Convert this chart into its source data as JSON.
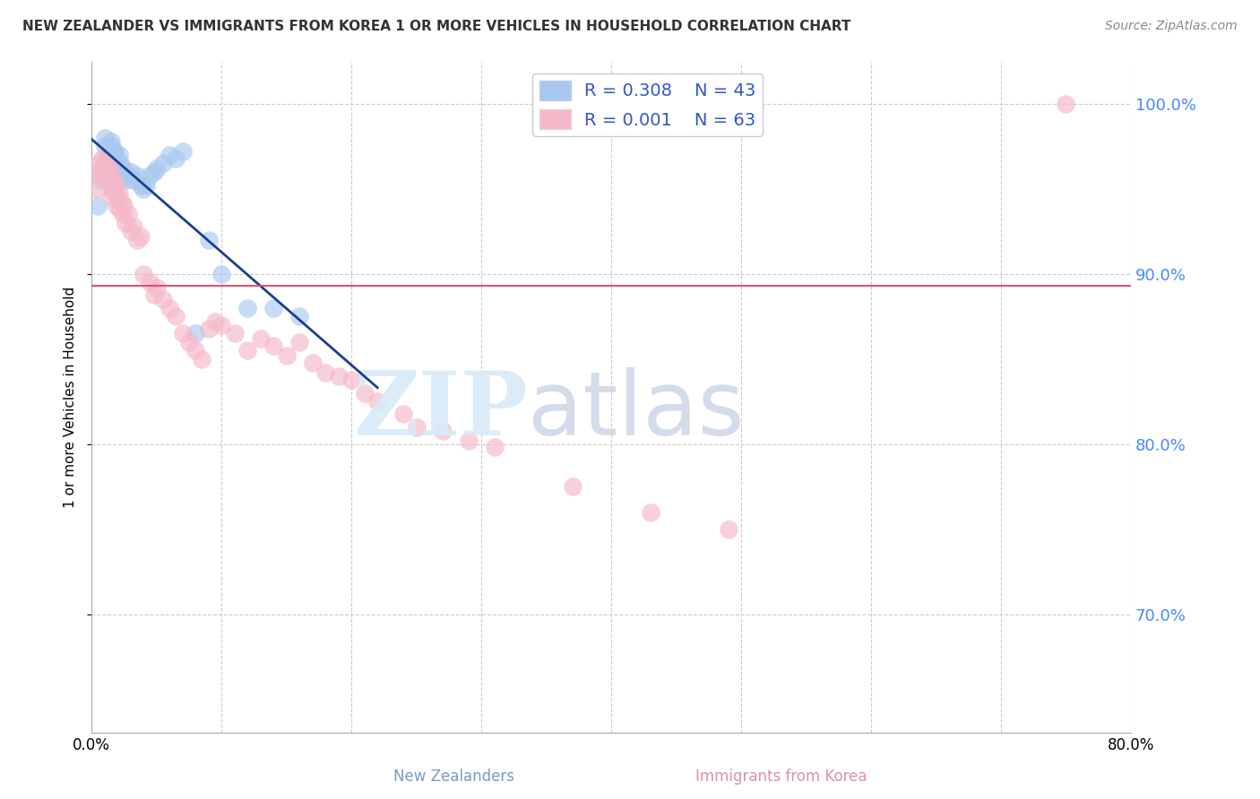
{
  "title": "NEW ZEALANDER VS IMMIGRANTS FROM KOREA 1 OR MORE VEHICLES IN HOUSEHOLD CORRELATION CHART",
  "source": "Source: ZipAtlas.com",
  "ylabel": "1 or more Vehicles in Household",
  "legend_label1": "New Zealanders",
  "legend_label2": "Immigrants from Korea",
  "R1": 0.308,
  "N1": 43,
  "R2": 0.001,
  "N2": 63,
  "xlim": [
    0.0,
    0.8
  ],
  "ylim": [
    0.63,
    1.025
  ],
  "yticks": [
    0.7,
    0.8,
    0.9,
    1.0
  ],
  "ytick_labels": [
    "70.0%",
    "80.0%",
    "90.0%",
    "100.0%"
  ],
  "xticks": [
    0.0,
    0.1,
    0.2,
    0.3,
    0.4,
    0.5,
    0.6,
    0.7,
    0.8
  ],
  "xtick_labels": [
    "0.0%",
    "",
    "",
    "",
    "",
    "",
    "",
    "",
    "80.0%"
  ],
  "color_blue": "#a8c8f0",
  "color_pink": "#f5b8c8",
  "trendline_blue": "#1a3f8f",
  "trendline_pink": "#e05070",
  "legend_color": "#3355cc",
  "background_color": "#ffffff",
  "blue_x": [
    0.005,
    0.007,
    0.008,
    0.01,
    0.01,
    0.012,
    0.013,
    0.014,
    0.015,
    0.015,
    0.016,
    0.017,
    0.018,
    0.018,
    0.019,
    0.02,
    0.021,
    0.022,
    0.022,
    0.023,
    0.024,
    0.025,
    0.025,
    0.026,
    0.03,
    0.032,
    0.035,
    0.038,
    0.04,
    0.042,
    0.045,
    0.048,
    0.05,
    0.055,
    0.06,
    0.065,
    0.07,
    0.08,
    0.09,
    0.1,
    0.12,
    0.14,
    0.16
  ],
  "blue_y": [
    0.94,
    0.955,
    0.96,
    0.975,
    0.98,
    0.97,
    0.968,
    0.972,
    0.975,
    0.978,
    0.965,
    0.968,
    0.97,
    0.972,
    0.968,
    0.965,
    0.97,
    0.96,
    0.965,
    0.962,
    0.96,
    0.958,
    0.962,
    0.955,
    0.96,
    0.955,
    0.958,
    0.952,
    0.95,
    0.952,
    0.958,
    0.96,
    0.962,
    0.965,
    0.97,
    0.968,
    0.972,
    0.865,
    0.92,
    0.9,
    0.88,
    0.88,
    0.875
  ],
  "pink_x": [
    0.003,
    0.005,
    0.006,
    0.007,
    0.008,
    0.01,
    0.01,
    0.012,
    0.013,
    0.014,
    0.015,
    0.016,
    0.017,
    0.018,
    0.018,
    0.019,
    0.02,
    0.021,
    0.022,
    0.023,
    0.024,
    0.025,
    0.026,
    0.028,
    0.03,
    0.032,
    0.035,
    0.038,
    0.04,
    0.045,
    0.048,
    0.05,
    0.055,
    0.06,
    0.065,
    0.07,
    0.075,
    0.08,
    0.085,
    0.09,
    0.095,
    0.1,
    0.11,
    0.12,
    0.13,
    0.14,
    0.15,
    0.16,
    0.17,
    0.18,
    0.19,
    0.2,
    0.21,
    0.22,
    0.24,
    0.25,
    0.27,
    0.29,
    0.31,
    0.37,
    0.43,
    0.49,
    0.75
  ],
  "pink_y": [
    0.96,
    0.95,
    0.965,
    0.96,
    0.968,
    0.958,
    0.965,
    0.955,
    0.96,
    0.962,
    0.945,
    0.95,
    0.955,
    0.948,
    0.952,
    0.94,
    0.945,
    0.948,
    0.938,
    0.942,
    0.935,
    0.94,
    0.93,
    0.935,
    0.925,
    0.928,
    0.92,
    0.922,
    0.9,
    0.895,
    0.888,
    0.892,
    0.885,
    0.88,
    0.875,
    0.865,
    0.86,
    0.855,
    0.85,
    0.868,
    0.872,
    0.87,
    0.865,
    0.855,
    0.862,
    0.858,
    0.852,
    0.86,
    0.848,
    0.842,
    0.84,
    0.838,
    0.83,
    0.825,
    0.818,
    0.81,
    0.808,
    0.802,
    0.798,
    0.775,
    0.76,
    0.75,
    1.0
  ]
}
